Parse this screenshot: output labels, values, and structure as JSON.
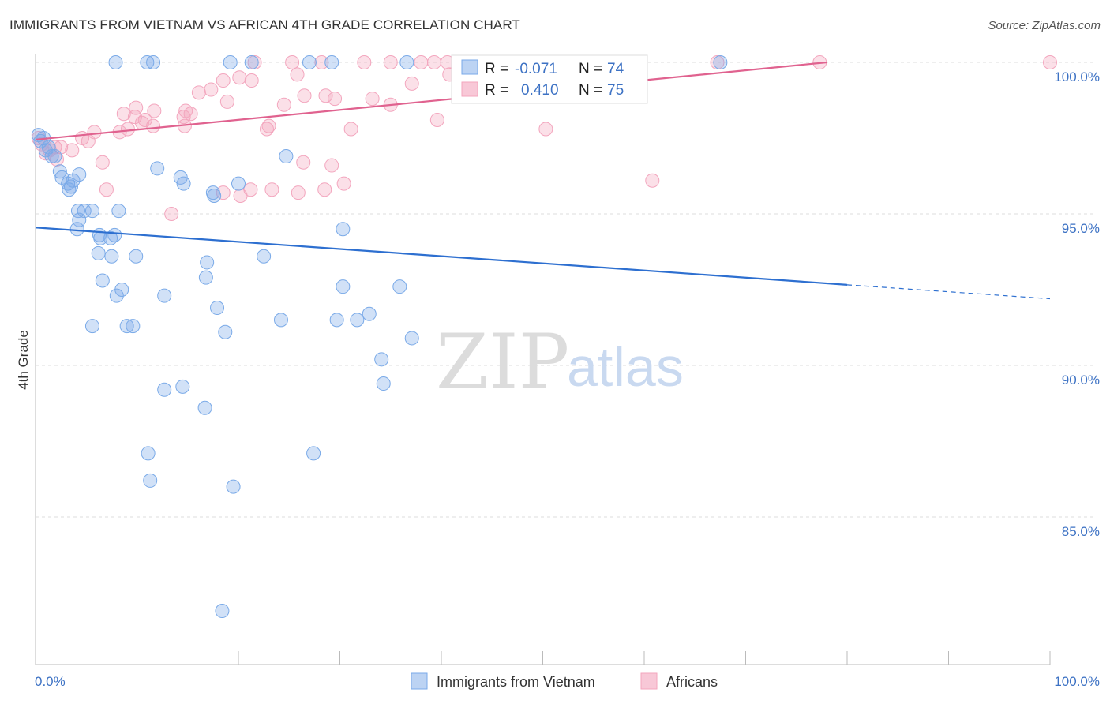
{
  "header": {
    "title": "IMMIGRANTS FROM VIETNAM VS AFRICAN 4TH GRADE CORRELATION CHART",
    "source": "Source: ZipAtlas.com"
  },
  "watermark": {
    "zip": "ZIP",
    "atlas": "atlas"
  },
  "colors": {
    "blue": "#7aaae8",
    "blue_line": "#2d6fd0",
    "pink": "#f3a6be",
    "pink_line": "#e0628f",
    "tick_label": "#3d72c4",
    "grid": "#dddddd"
  },
  "legend_top": {
    "rows": [
      {
        "r_label": "R =",
        "r_value": "-0.071",
        "n_label": "N =",
        "n_value": "74"
      },
      {
        "r_label": "R =",
        "r_value": "0.410",
        "n_label": "N =",
        "n_value": "75"
      }
    ]
  },
  "legend_bottom": {
    "items": [
      "Immigrants from Vietnam",
      "Africans"
    ]
  },
  "chart_data": {
    "type": "scatter",
    "title": "IMMIGRANTS FROM VIETNAM VS AFRICAN 4TH GRADE CORRELATION CHART",
    "xlabel": "",
    "ylabel": "4th Grade",
    "xlim": [
      0,
      100
    ],
    "ylim": [
      80.5,
      100.8
    ],
    "x_tick_labels": [
      "0.0%",
      "100.0%"
    ],
    "y_ticks": [
      {
        "value": 100,
        "label": "100.0%"
      },
      {
        "value": 95,
        "label": "95.0%"
      },
      {
        "value": 90,
        "label": "90.0%"
      },
      {
        "value": 85,
        "label": "85.0%"
      }
    ],
    "grid": true,
    "legend_position": "bottom",
    "series": [
      {
        "name": "Immigrants from Vietnam",
        "color": "#7aaae8",
        "r": -0.071,
        "n": 74,
        "trend": {
          "x0": 0,
          "y0": 94.55,
          "x1": 80,
          "y1": 92.66,
          "dashed_to_x": 100,
          "dashed_to_y": 92.2
        },
        "points": [
          [
            0.3,
            97.6
          ],
          [
            0.5,
            97.4
          ],
          [
            0.8,
            97.5
          ],
          [
            1.0,
            97.1
          ],
          [
            1.3,
            97.2
          ],
          [
            1.6,
            96.9
          ],
          [
            1.9,
            96.9
          ],
          [
            2.4,
            96.4
          ],
          [
            2.6,
            96.2
          ],
          [
            3.2,
            96.0
          ],
          [
            3.5,
            95.9
          ],
          [
            3.7,
            96.1
          ],
          [
            4.3,
            96.3
          ],
          [
            3.3,
            95.8
          ],
          [
            4.2,
            95.1
          ],
          [
            4.8,
            95.1
          ],
          [
            5.6,
            95.1
          ],
          [
            8.2,
            95.1
          ],
          [
            4.3,
            94.8
          ],
          [
            4.1,
            94.5
          ],
          [
            6.3,
            94.3
          ],
          [
            6.4,
            94.2
          ],
          [
            7.4,
            94.2
          ],
          [
            7.8,
            94.3
          ],
          [
            6.2,
            93.7
          ],
          [
            7.5,
            93.6
          ],
          [
            9.9,
            93.6
          ],
          [
            12.0,
            96.5
          ],
          [
            14.3,
            96.2
          ],
          [
            14.6,
            96.0
          ],
          [
            17.5,
            95.7
          ],
          [
            17.6,
            95.6
          ],
          [
            20.0,
            96.0
          ],
          [
            24.7,
            96.9
          ],
          [
            30.3,
            94.5
          ],
          [
            6.6,
            92.8
          ],
          [
            8.0,
            92.3
          ],
          [
            8.5,
            92.5
          ],
          [
            12.7,
            92.3
          ],
          [
            16.9,
            93.4
          ],
          [
            16.8,
            92.9
          ],
          [
            22.5,
            93.6
          ],
          [
            30.3,
            92.6
          ],
          [
            35.9,
            92.6
          ],
          [
            5.6,
            91.3
          ],
          [
            9.0,
            91.3
          ],
          [
            9.6,
            91.3
          ],
          [
            17.9,
            91.9
          ],
          [
            18.7,
            91.1
          ],
          [
            24.2,
            91.5
          ],
          [
            29.7,
            91.5
          ],
          [
            31.7,
            91.5
          ],
          [
            32.9,
            91.7
          ],
          [
            34.1,
            90.2
          ],
          [
            34.3,
            89.4
          ],
          [
            37.1,
            90.9
          ],
          [
            12.7,
            89.2
          ],
          [
            14.5,
            89.3
          ],
          [
            16.7,
            88.6
          ],
          [
            11.1,
            87.1
          ],
          [
            11.3,
            86.2
          ],
          [
            19.5,
            86.0
          ],
          [
            27.4,
            87.1
          ],
          [
            18.4,
            81.9
          ],
          [
            7.9,
            100.0
          ],
          [
            11.0,
            100.0
          ],
          [
            11.6,
            100.0
          ],
          [
            19.2,
            100.0
          ],
          [
            21.3,
            100.0
          ],
          [
            27.0,
            100.0
          ],
          [
            29.2,
            100.0
          ],
          [
            36.6,
            100.0
          ],
          [
            49.3,
            100.0
          ],
          [
            67.5,
            100.0
          ]
        ]
      },
      {
        "name": "Africans",
        "color": "#f3a6be",
        "r": 0.41,
        "n": 75,
        "trend": {
          "x0": 0,
          "y0": 97.45,
          "x1": 78,
          "y1": 100.0
        },
        "points": [
          [
            0.3,
            97.5
          ],
          [
            0.6,
            97.3
          ],
          [
            1.0,
            97.0
          ],
          [
            1.4,
            97.1
          ],
          [
            1.9,
            97.2
          ],
          [
            2.5,
            97.2
          ],
          [
            2.1,
            96.8
          ],
          [
            3.6,
            97.1
          ],
          [
            4.6,
            97.5
          ],
          [
            5.2,
            97.4
          ],
          [
            5.8,
            97.7
          ],
          [
            6.6,
            96.7
          ],
          [
            8.3,
            97.7
          ],
          [
            9.1,
            97.8
          ],
          [
            9.8,
            98.2
          ],
          [
            8.7,
            98.3
          ],
          [
            9.9,
            98.5
          ],
          [
            10.5,
            98.0
          ],
          [
            10.8,
            98.1
          ],
          [
            11.7,
            98.4
          ],
          [
            11.6,
            97.9
          ],
          [
            14.7,
            97.9
          ],
          [
            14.6,
            98.2
          ],
          [
            14.8,
            98.4
          ],
          [
            15.3,
            98.3
          ],
          [
            16.1,
            99.0
          ],
          [
            17.3,
            99.1
          ],
          [
            18.5,
            99.4
          ],
          [
            18.9,
            98.7
          ],
          [
            20.1,
            99.5
          ],
          [
            21.3,
            99.4
          ],
          [
            23.0,
            97.9
          ],
          [
            22.8,
            97.8
          ],
          [
            24.5,
            98.6
          ],
          [
            25.8,
            99.6
          ],
          [
            26.5,
            98.9
          ],
          [
            28.6,
            98.9
          ],
          [
            29.5,
            98.8
          ],
          [
            7.0,
            95.8
          ],
          [
            13.4,
            95.0
          ],
          [
            18.5,
            95.7
          ],
          [
            20.2,
            95.6
          ],
          [
            21.2,
            95.8
          ],
          [
            23.3,
            95.8
          ],
          [
            25.9,
            95.7
          ],
          [
            26.4,
            96.7
          ],
          [
            28.5,
            95.8
          ],
          [
            29.2,
            96.6
          ],
          [
            30.4,
            96.0
          ],
          [
            31.1,
            97.8
          ],
          [
            21.6,
            100.0
          ],
          [
            25.3,
            100.0
          ],
          [
            28.2,
            100.0
          ],
          [
            32.4,
            100.0
          ],
          [
            35.0,
            100.0
          ],
          [
            38.0,
            100.0
          ],
          [
            39.3,
            100.0
          ],
          [
            40.6,
            100.0
          ],
          [
            43.1,
            100.0
          ],
          [
            48.6,
            100.0
          ],
          [
            58.8,
            100.0
          ],
          [
            67.2,
            100.0
          ],
          [
            77.3,
            100.0
          ],
          [
            100.0,
            100.0
          ],
          [
            33.2,
            98.8
          ],
          [
            35.0,
            98.6
          ],
          [
            37.1,
            99.3
          ],
          [
            39.6,
            98.1
          ],
          [
            40.8,
            99.6
          ],
          [
            43.3,
            99.7
          ],
          [
            47.2,
            99.0
          ],
          [
            50.3,
            97.8
          ],
          [
            52.8,
            99.2
          ],
          [
            60.8,
            96.1
          ],
          [
            44.6,
            100.0
          ]
        ]
      }
    ]
  }
}
